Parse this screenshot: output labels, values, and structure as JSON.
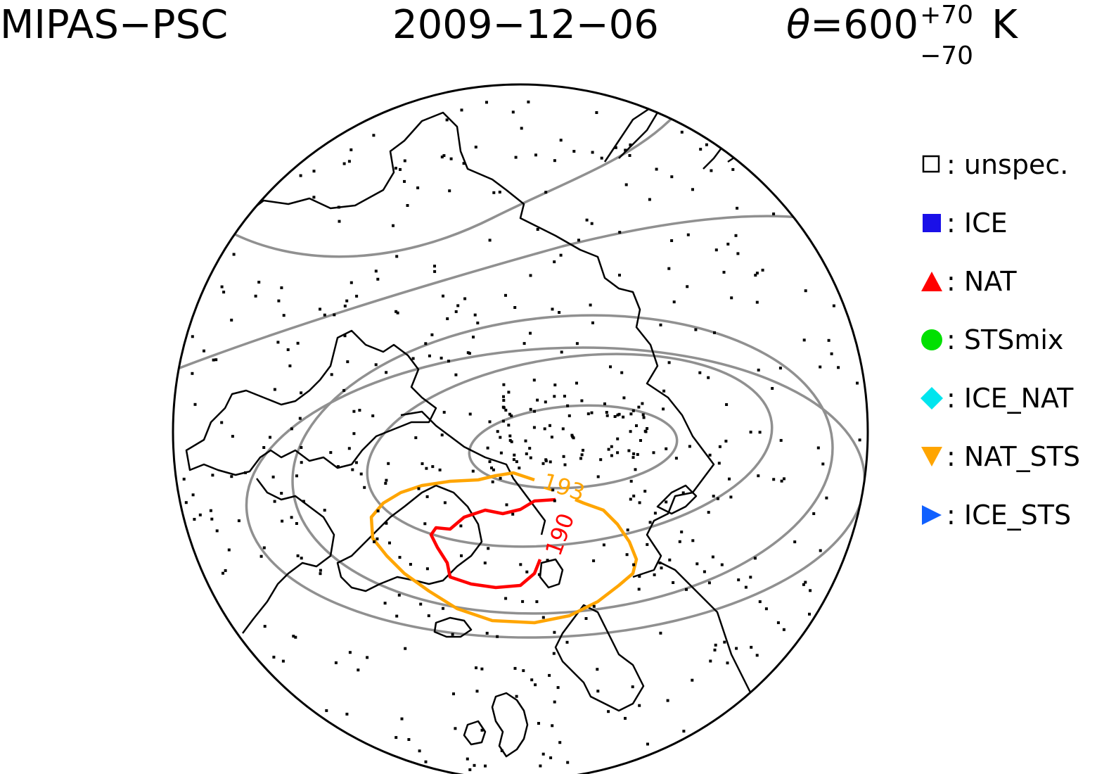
{
  "title": {
    "instrument": "MIPAS−PSC",
    "date": "2009−12−06",
    "theta_symbol": "θ",
    "theta_value": "=600",
    "theta_sup": "+70",
    "theta_sub": "−70",
    "theta_unit": "K"
  },
  "legend": [
    {
      "label": ": unspec.",
      "marker": "open-square",
      "color": "#000000"
    },
    {
      "label": ": ICE",
      "marker": "filled-square",
      "color": "#1a10e8"
    },
    {
      "label": ": NAT",
      "marker": "triangle-up",
      "color": "#ff0000"
    },
    {
      "label": ": STSmix",
      "marker": "circle",
      "color": "#00e000"
    },
    {
      "label": ": ICE_NAT",
      "marker": "diamond",
      "color": "#00e5ee"
    },
    {
      "label": ": NAT_STS",
      "marker": "triangle-down",
      "color": "#ffa500"
    },
    {
      "label": ": ICE_STS",
      "marker": "triangle-right",
      "color": "#1060ff"
    }
  ],
  "contours": [
    {
      "label": "193",
      "color": "#ffa500"
    },
    {
      "label": "190",
      "color": "#ff0000"
    }
  ],
  "colors": {
    "coast": "#000000",
    "isoline": "#909090",
    "background": "#ffffff"
  }
}
